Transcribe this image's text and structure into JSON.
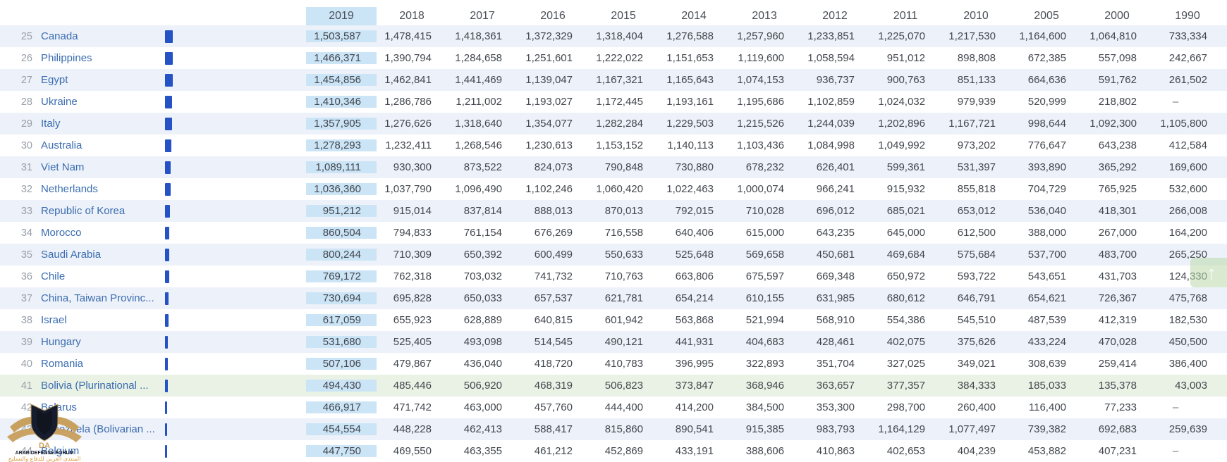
{
  "table": {
    "year_columns": [
      "2019",
      "2018",
      "2017",
      "2016",
      "2015",
      "2014",
      "2013",
      "2012",
      "2011",
      "2010",
      "2005",
      "2000",
      "1990"
    ],
    "highlighted_year": "2019",
    "no_data_symbol": "–",
    "rows": [
      {
        "rank": "25",
        "name": "Canada",
        "values": [
          "1,503,587",
          "1,478,415",
          "1,418,361",
          "1,372,329",
          "1,318,404",
          "1,276,588",
          "1,257,960",
          "1,233,851",
          "1,225,070",
          "1,217,530",
          "1,164,600",
          "1,064,810",
          "733,334"
        ]
      },
      {
        "rank": "26",
        "name": "Philippines",
        "values": [
          "1,466,371",
          "1,390,794",
          "1,284,658",
          "1,251,601",
          "1,222,022",
          "1,151,653",
          "1,119,600",
          "1,058,594",
          "951,012",
          "898,808",
          "672,385",
          "557,098",
          "242,667"
        ]
      },
      {
        "rank": "27",
        "name": "Egypt",
        "values": [
          "1,454,856",
          "1,462,841",
          "1,441,469",
          "1,139,047",
          "1,167,321",
          "1,165,643",
          "1,074,153",
          "936,737",
          "900,763",
          "851,133",
          "664,636",
          "591,762",
          "261,502"
        ]
      },
      {
        "rank": "28",
        "name": "Ukraine",
        "values": [
          "1,410,346",
          "1,286,786",
          "1,211,002",
          "1,193,027",
          "1,172,445",
          "1,193,161",
          "1,195,686",
          "1,102,859",
          "1,024,032",
          "979,939",
          "520,999",
          "218,802",
          "–"
        ]
      },
      {
        "rank": "29",
        "name": "Italy",
        "values": [
          "1,357,905",
          "1,276,626",
          "1,318,640",
          "1,354,077",
          "1,282,284",
          "1,229,503",
          "1,215,526",
          "1,244,039",
          "1,202,896",
          "1,167,721",
          "998,644",
          "1,092,300",
          "1,105,800"
        ]
      },
      {
        "rank": "30",
        "name": "Australia",
        "values": [
          "1,278,293",
          "1,232,411",
          "1,268,546",
          "1,230,613",
          "1,153,152",
          "1,140,113",
          "1,103,436",
          "1,084,998",
          "1,049,992",
          "973,202",
          "776,647",
          "643,238",
          "412,584"
        ]
      },
      {
        "rank": "31",
        "name": "Viet Nam",
        "values": [
          "1,089,111",
          "930,300",
          "873,522",
          "824,073",
          "790,848",
          "730,880",
          "678,232",
          "626,401",
          "599,361",
          "531,397",
          "393,890",
          "365,292",
          "169,600"
        ]
      },
      {
        "rank": "32",
        "name": "Netherlands",
        "values": [
          "1,036,360",
          "1,037,790",
          "1,096,490",
          "1,102,246",
          "1,060,420",
          "1,022,463",
          "1,000,074",
          "966,241",
          "915,932",
          "855,818",
          "704,729",
          "765,925",
          "532,600"
        ]
      },
      {
        "rank": "33",
        "name": "Republic of Korea",
        "values": [
          "951,212",
          "915,014",
          "837,814",
          "888,013",
          "870,013",
          "792,015",
          "710,028",
          "696,012",
          "685,021",
          "653,012",
          "536,040",
          "418,301",
          "266,008"
        ]
      },
      {
        "rank": "34",
        "name": "Morocco",
        "values": [
          "860,504",
          "794,833",
          "761,154",
          "676,269",
          "716,558",
          "640,406",
          "615,000",
          "643,235",
          "645,000",
          "612,500",
          "388,000",
          "267,000",
          "164,200"
        ]
      },
      {
        "rank": "35",
        "name": "Saudi Arabia",
        "values": [
          "800,244",
          "710,309",
          "650,392",
          "600,499",
          "550,633",
          "525,648",
          "569,658",
          "450,681",
          "469,684",
          "575,684",
          "537,700",
          "483,700",
          "265,250"
        ]
      },
      {
        "rank": "36",
        "name": "Chile",
        "values": [
          "769,172",
          "762,318",
          "703,032",
          "741,732",
          "710,763",
          "663,806",
          "675,597",
          "669,348",
          "650,972",
          "593,722",
          "543,651",
          "431,703",
          "124,330"
        ]
      },
      {
        "rank": "37",
        "name": "China, Taiwan Provinc...",
        "values": [
          "730,694",
          "695,828",
          "650,033",
          "657,537",
          "621,781",
          "654,214",
          "610,155",
          "631,985",
          "680,612",
          "646,791",
          "654,621",
          "726,367",
          "475,768"
        ]
      },
      {
        "rank": "38",
        "name": "Israel",
        "values": [
          "617,059",
          "655,923",
          "628,889",
          "640,815",
          "601,942",
          "563,868",
          "521,994",
          "568,910",
          "554,386",
          "545,510",
          "487,539",
          "412,319",
          "182,530"
        ]
      },
      {
        "rank": "39",
        "name": "Hungary",
        "values": [
          "531,680",
          "525,405",
          "493,098",
          "514,545",
          "490,121",
          "441,931",
          "404,683",
          "428,461",
          "402,075",
          "375,626",
          "433,224",
          "470,028",
          "450,500"
        ]
      },
      {
        "rank": "40",
        "name": "Romania",
        "values": [
          "507,106",
          "479,867",
          "436,040",
          "418,720",
          "410,783",
          "396,995",
          "322,893",
          "351,704",
          "327,025",
          "349,021",
          "308,639",
          "259,414",
          "386,400"
        ]
      },
      {
        "rank": "41",
        "name": "Bolivia (Plurinational ...",
        "highlight": "green",
        "values": [
          "494,430",
          "485,446",
          "506,920",
          "468,319",
          "506,823",
          "373,847",
          "368,946",
          "363,657",
          "377,357",
          "384,333",
          "185,033",
          "135,378",
          "43,003"
        ]
      },
      {
        "rank": "42",
        "name": "Belarus",
        "values": [
          "466,917",
          "471,742",
          "463,000",
          "457,760",
          "444,400",
          "414,200",
          "384,500",
          "353,300",
          "298,700",
          "260,400",
          "116,400",
          "77,233",
          "–"
        ]
      },
      {
        "rank": "43",
        "name": "Venezuela (Bolivarian ...",
        "values": [
          "454,554",
          "448,228",
          "462,413",
          "588,417",
          "815,860",
          "890,541",
          "915,385",
          "983,793",
          "1,164,129",
          "1,077,497",
          "739,382",
          "692,683",
          "259,639"
        ]
      },
      {
        "rank": "44",
        "name": "Belgium",
        "values": [
          "447,750",
          "469,550",
          "463,355",
          "461,212",
          "452,869",
          "433,191",
          "388,606",
          "410,863",
          "402,653",
          "404,239",
          "453,882",
          "407,231",
          "–"
        ]
      }
    ]
  },
  "scroll_top_button": {
    "icon": "up-arrow",
    "glyph": "↑"
  },
  "watermark": {
    "initials": "DA",
    "title": "ARAB DEFENSE FORUM",
    "subtitle_arabic": "المنتدى العربي للدفاع والتسليح"
  },
  "colors": {
    "highlight_column": "#cbe4f6",
    "row_stripe": "#edf1f9",
    "row_highlight_green": "#eaf2e5",
    "bar": "#2553c6",
    "country_link": "#3a6cb0",
    "rank_text": "#999fa8",
    "value_text": "#42474e",
    "scroll_button": "#bad9ab",
    "watermark_gold": "#c9a15e",
    "watermark_navy": "#161d2f",
    "watermark_orange": "#d79b3f"
  }
}
